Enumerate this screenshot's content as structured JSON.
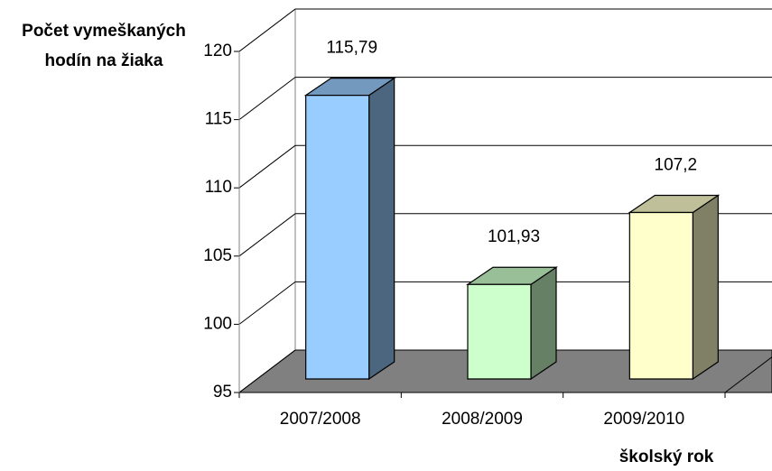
{
  "chart_data": {
    "type": "bar3d",
    "y_axis_title": "Počet vymeškaných hodín na žiaka",
    "x_axis_title": "školský rok",
    "categories": [
      "2007/2008",
      "2008/2009",
      "2009/2010"
    ],
    "values": [
      115.79,
      101.93,
      107.2
    ],
    "value_labels": [
      "115,79",
      "101,93",
      "107,2"
    ],
    "colors": [
      "#99ccff",
      "#ccffcc",
      "#ffffcc"
    ],
    "ylim": [
      95,
      120
    ],
    "yticks": [
      95,
      100,
      105,
      110,
      115,
      120
    ],
    "grid": true
  }
}
